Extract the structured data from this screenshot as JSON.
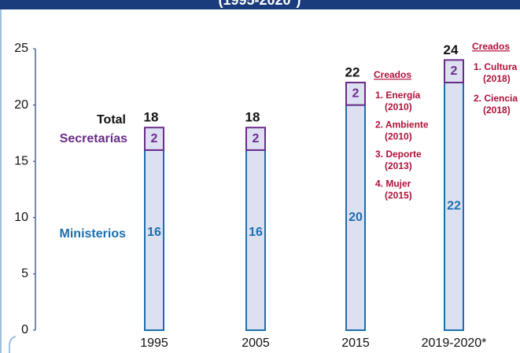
{
  "chart_data": {
    "type": "stacked_bar",
    "title": "(1995-2020*)",
    "categories": [
      "1995",
      "2005",
      "2015",
      "2019-2020*"
    ],
    "series": [
      {
        "name": "Ministerios",
        "color": "#1a6fb0",
        "fill": "#dde0f0",
        "values": [
          16,
          16,
          20,
          22
        ]
      },
      {
        "name": "Secretarías",
        "color": "#6a2c8a",
        "fill": "#dde0f0",
        "values": [
          2,
          2,
          2,
          2
        ]
      }
    ],
    "total_label": "Total",
    "totals": [
      18,
      18,
      22,
      24
    ],
    "ylim": [
      0,
      25
    ],
    "yticks": [
      0,
      5,
      10,
      15,
      20,
      25
    ],
    "grid": false,
    "annotations": [
      {
        "category": 2,
        "color": "#b0103a",
        "title": "Creados",
        "items": [
          {
            "name": "1. Energía",
            "year": "(2010)"
          },
          {
            "name": "2. Ambiente",
            "year": "(2010)"
          },
          {
            "name": "3. Deporte",
            "year": "(2013)"
          },
          {
            "name": "4. Mujer",
            "year": "(2015)"
          }
        ]
      },
      {
        "category": 3,
        "color": "#b0103a",
        "title": "Creados",
        "items": [
          {
            "name": "1. Cultura",
            "year": "(2018)"
          },
          {
            "name": "2. Ciencia",
            "year": "(2018)"
          }
        ]
      }
    ]
  }
}
